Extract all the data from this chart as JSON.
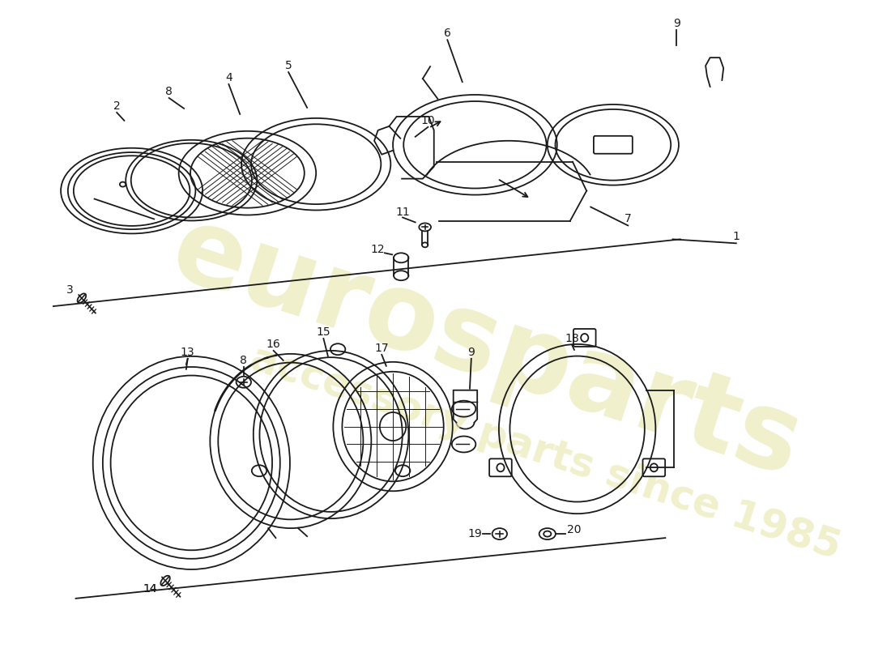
{
  "bg_color": "#ffffff",
  "line_color": "#1a1a1a",
  "lw": 1.3,
  "watermark_color": "#e8e8b0",
  "watermark_alpha": 0.65,
  "fig_w": 11.0,
  "fig_h": 8.0
}
